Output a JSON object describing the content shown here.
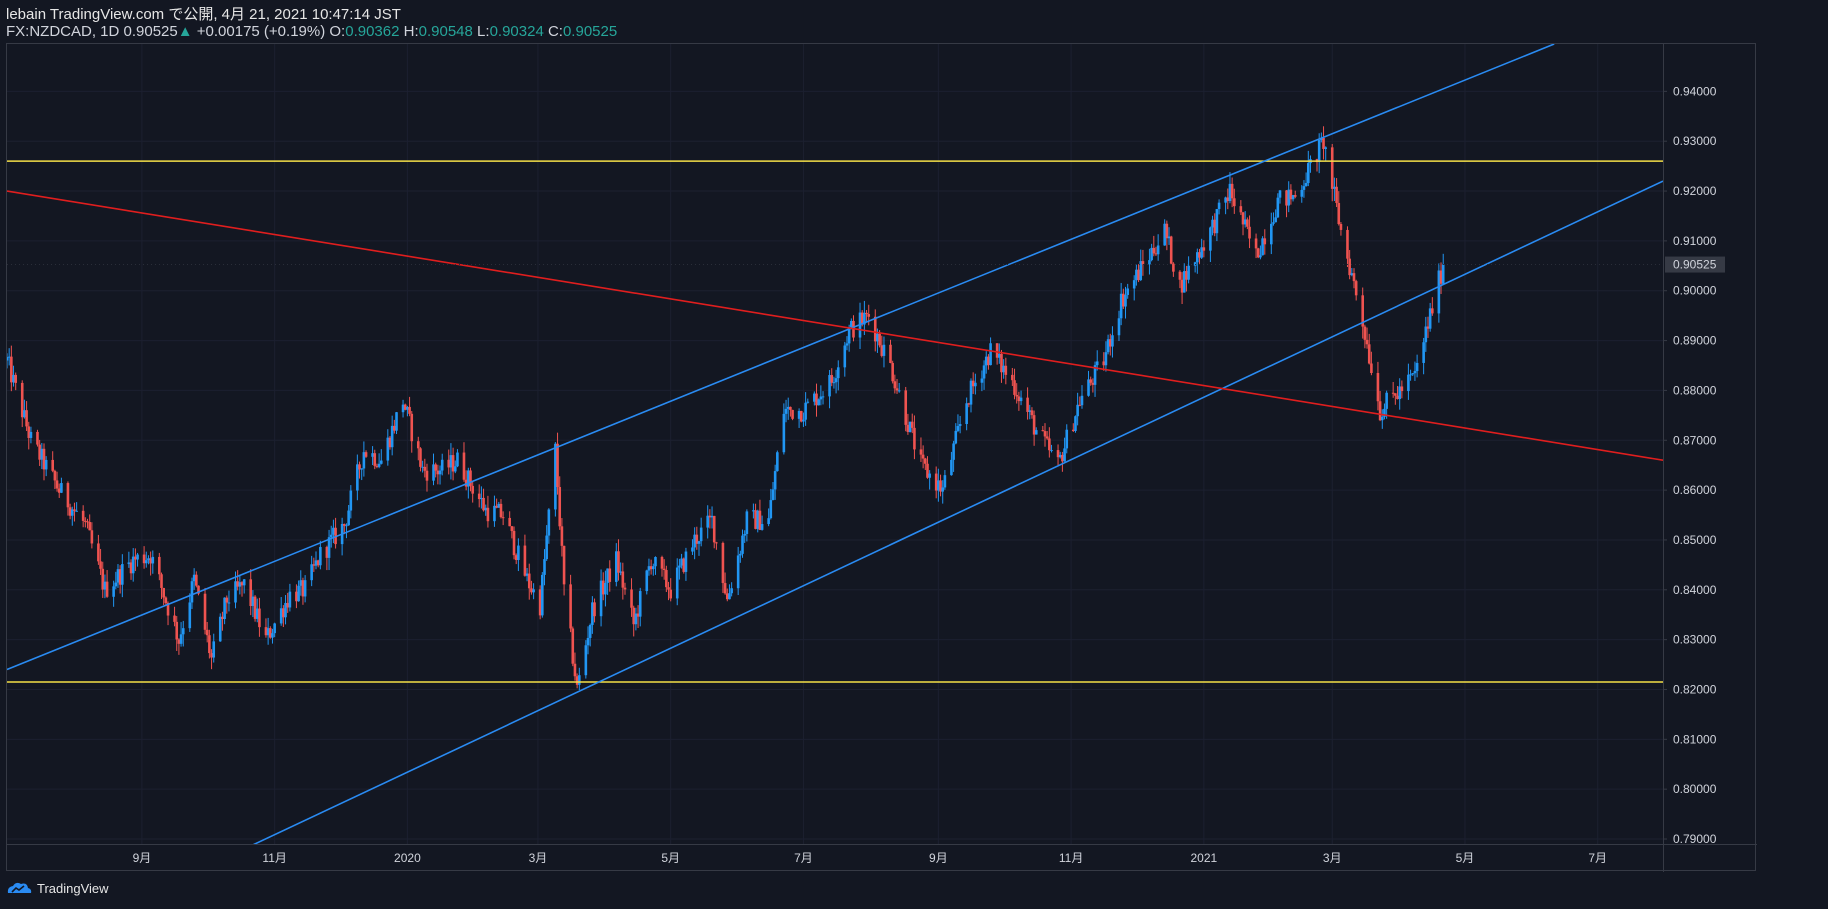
{
  "header": {
    "published": "lebain TradingView.com で公開, 4月 21, 2021 10:47:14 JST",
    "symbol": "FX:NZDCAD, 1D",
    "last": "0.90525",
    "change": "+0.00175 (+0.19%)",
    "o_label": "O:",
    "o_value": "0.90362",
    "h_label": "H:",
    "h_value": "0.90548",
    "l_label": "L:",
    "l_value": "0.90324",
    "c_label": "C:",
    "c_value": "0.90525"
  },
  "footer": {
    "brand": "TradingView"
  },
  "colors": {
    "background": "#131722",
    "up": "#2196f3",
    "down": "#ef5350",
    "support": "#f5e048",
    "channel": "#2a8bf2",
    "trend": "#e01e1e",
    "price_tag": "#363a45"
  },
  "chart_data": {
    "type": "candlestick",
    "title": "FX:NZDCAD, 1D",
    "x_start": "2019-07-01",
    "x_end": "2021-07-31",
    "ylim": [
      0.789,
      0.9495
    ],
    "y_ticks": [
      "0.94000",
      "0.93000",
      "0.92000",
      "0.91000",
      "0.90000",
      "0.89000",
      "0.88000",
      "0.87000",
      "0.86000",
      "0.85000",
      "0.84000",
      "0.83000",
      "0.82000",
      "0.81000",
      "0.80000",
      "0.79000"
    ],
    "x_ticks": [
      {
        "label": "9月",
        "date": "2019-09-01"
      },
      {
        "label": "11月",
        "date": "2019-11-01"
      },
      {
        "label": "2020",
        "date": "2020-01-01"
      },
      {
        "label": "3月",
        "date": "2020-03-01"
      },
      {
        "label": "5月",
        "date": "2020-05-01"
      },
      {
        "label": "7月",
        "date": "2020-07-01"
      },
      {
        "label": "9月",
        "date": "2020-09-01"
      },
      {
        "label": "11月",
        "date": "2020-11-01"
      },
      {
        "label": "2021",
        "date": "2021-01-01"
      },
      {
        "label": "3月",
        "date": "2021-03-01"
      },
      {
        "label": "5月",
        "date": "2021-05-01"
      },
      {
        "label": "7月",
        "date": "2021-07-01"
      }
    ],
    "last_price": "0.90525",
    "price_path": [
      [
        "2019-07-01",
        0.886
      ],
      [
        "2019-07-12",
        0.87
      ],
      [
        "2019-07-25",
        0.86
      ],
      [
        "2019-08-06",
        0.853
      ],
      [
        "2019-08-15",
        0.84
      ],
      [
        "2019-08-28",
        0.846
      ],
      [
        "2019-09-05",
        0.847
      ],
      [
        "2019-09-18",
        0.83
      ],
      [
        "2019-09-25",
        0.842
      ],
      [
        "2019-10-03",
        0.826
      ],
      [
        "2019-10-10",
        0.838
      ],
      [
        "2019-10-18",
        0.841
      ],
      [
        "2019-10-28",
        0.83
      ],
      [
        "2019-11-08",
        0.839
      ],
      [
        "2019-11-15",
        0.84
      ],
      [
        "2019-11-22",
        0.847
      ],
      [
        "2019-12-03",
        0.853
      ],
      [
        "2019-12-12",
        0.868
      ],
      [
        "2019-12-20",
        0.866
      ],
      [
        "2019-12-30",
        0.878
      ],
      [
        "2020-01-08",
        0.864
      ],
      [
        "2020-01-17",
        0.864
      ],
      [
        "2020-01-24",
        0.866
      ],
      [
        "2020-02-06",
        0.856
      ],
      [
        "2020-02-14",
        0.855
      ],
      [
        "2020-02-25",
        0.842
      ],
      [
        "2020-03-02",
        0.837
      ],
      [
        "2020-03-09",
        0.868
      ],
      [
        "2020-03-13",
        0.84
      ],
      [
        "2020-03-19",
        0.82
      ],
      [
        "2020-03-26",
        0.836
      ],
      [
        "2020-04-06",
        0.846
      ],
      [
        "2020-04-14",
        0.833
      ],
      [
        "2020-04-22",
        0.846
      ],
      [
        "2020-05-01",
        0.84
      ],
      [
        "2020-05-12",
        0.85
      ],
      [
        "2020-05-20",
        0.854
      ],
      [
        "2020-05-27",
        0.838
      ],
      [
        "2020-06-05",
        0.854
      ],
      [
        "2020-06-15",
        0.854
      ],
      [
        "2020-06-22",
        0.876
      ],
      [
        "2020-07-01",
        0.876
      ],
      [
        "2020-07-14",
        0.882
      ],
      [
        "2020-07-22",
        0.892
      ],
      [
        "2020-07-31",
        0.895
      ],
      [
        "2020-08-10",
        0.885
      ],
      [
        "2020-08-24",
        0.865
      ],
      [
        "2020-09-03",
        0.86
      ],
      [
        "2020-09-14",
        0.878
      ],
      [
        "2020-09-25",
        0.888
      ],
      [
        "2020-10-06",
        0.881
      ],
      [
        "2020-10-16",
        0.872
      ],
      [
        "2020-10-26",
        0.865
      ],
      [
        "2020-11-05",
        0.878
      ],
      [
        "2020-11-16",
        0.886
      ],
      [
        "2020-11-24",
        0.898
      ],
      [
        "2020-12-04",
        0.905
      ],
      [
        "2020-12-14",
        0.912
      ],
      [
        "2020-12-21",
        0.901
      ],
      [
        "2021-01-04",
        0.912
      ],
      [
        "2021-01-13",
        0.92
      ],
      [
        "2021-01-25",
        0.907
      ],
      [
        "2021-02-04",
        0.918
      ],
      [
        "2021-02-12",
        0.919
      ],
      [
        "2021-02-25",
        0.93
      ],
      [
        "2021-03-05",
        0.912
      ],
      [
        "2021-03-14",
        0.896
      ],
      [
        "2021-03-23",
        0.876
      ],
      [
        "2021-03-30",
        0.879
      ],
      [
        "2021-04-08",
        0.883
      ],
      [
        "2021-04-15",
        0.895
      ],
      [
        "2021-04-21",
        0.90525
      ]
    ],
    "drawings": [
      {
        "name": "upper-horizontal-level",
        "kind": "horizontal",
        "price": 0.926,
        "color": "support"
      },
      {
        "name": "lower-horizontal-level",
        "kind": "horizontal",
        "price": 0.8215,
        "color": "support"
      },
      {
        "name": "channel-upper-line",
        "kind": "line",
        "from": [
          "2019-07-01",
          0.824
        ],
        "to": [
          "2021-06-11",
          0.9495
        ],
        "color": "channel"
      },
      {
        "name": "channel-lower-line",
        "kind": "line",
        "from": [
          "2019-10-18",
          0.788
        ],
        "to": [
          "2021-07-31",
          0.922
        ],
        "color": "channel"
      },
      {
        "name": "downtrend-line",
        "kind": "line",
        "from": [
          "2019-07-01",
          0.92
        ],
        "to": [
          "2021-07-31",
          0.866
        ],
        "color": "trend"
      }
    ]
  }
}
